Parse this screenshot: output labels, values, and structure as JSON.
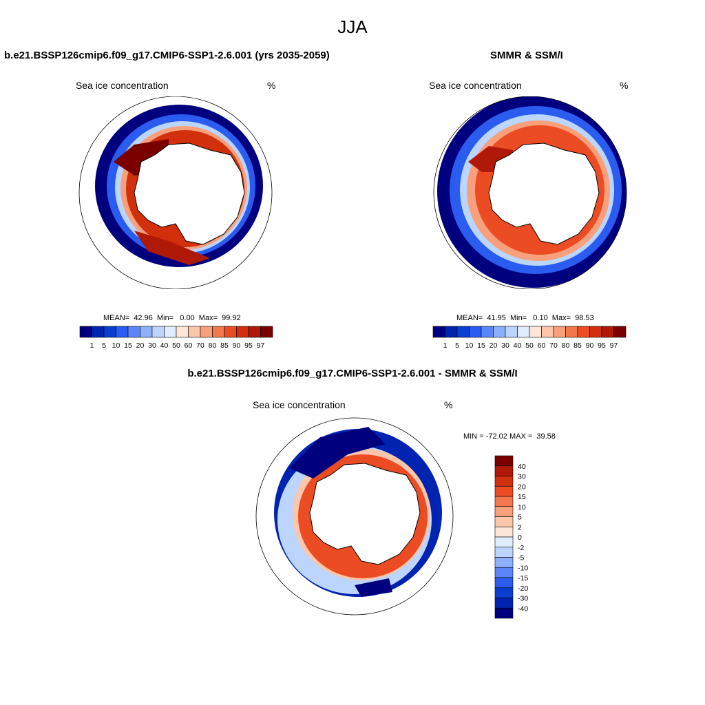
{
  "season": "JJA",
  "variable": "Sea ice concentration",
  "units": "%",
  "panels": [
    {
      "title": "b.e21.BSSP126cmip6.f09_g17.CMIP6-SSP1-2.6.001 (yrs 2035-2059)",
      "subtitle_left": "Sea ice concentration",
      "subtitle_right": "%",
      "stats": "MEAN=  42.96  Min=   0.00  Max=  99.92"
    },
    {
      "title": "SMMR & SSM/I",
      "subtitle_left": "Sea ice concentration",
      "subtitle_right": "%",
      "stats": "MEAN=  41.95  Min=   0.10  Max=  98.53"
    },
    {
      "title": "b.e21.BSSP126cmip6.f09_g17.CMIP6-SSP1-2.6.001 - SMMR & SSM/I",
      "subtitle_left": "Sea ice concentration",
      "subtitle_right": "%",
      "stats": "MIN = -72.02 MAX =  39.58"
    }
  ],
  "colorbar_levels": [
    "1",
    "5",
    "10",
    "15",
    "20",
    "30",
    "40",
    "50",
    "60",
    "70",
    "80",
    "85",
    "90",
    "95",
    "97"
  ],
  "colorbar_colors": [
    "#00007f",
    "#0024b0",
    "#0a3ed0",
    "#2a5cf0",
    "#5a86f8",
    "#8cb0fb",
    "#bcd5fd",
    "#e0ecff",
    "#fee6d8",
    "#fcc6ad",
    "#f8a07c",
    "#f4784e",
    "#ec4c24",
    "#d2300c",
    "#b01808",
    "#7a0000"
  ],
  "diff_levels": [
    "40",
    "30",
    "20",
    "15",
    "10",
    "5",
    "2",
    "0",
    "-2",
    "-5",
    "-10",
    "-15",
    "-20",
    "-30",
    "-40"
  ],
  "diff_colors": [
    "#7a0000",
    "#b01808",
    "#d2300c",
    "#ec4c24",
    "#f4784e",
    "#f8a07c",
    "#fcc6ad",
    "#fee6d8",
    "#e0ecff",
    "#bcd5fd",
    "#8cb0fb",
    "#5a86f8",
    "#2a5cf0",
    "#0a3ed0",
    "#0024b0",
    "#00007f"
  ]
}
